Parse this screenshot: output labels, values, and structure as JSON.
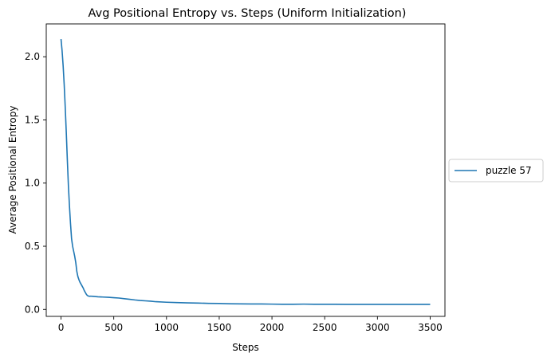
{
  "chart_data": {
    "type": "line",
    "title": "Avg Positional Entropy vs. Steps (Uniform Initialization)",
    "xlabel": "Steps",
    "ylabel": "Average Positional Entropy",
    "xlim": [
      -140,
      3640
    ],
    "ylim": [
      -0.055,
      2.26
    ],
    "x_ticks": [
      0,
      500,
      1000,
      1500,
      2000,
      2500,
      3000,
      3500
    ],
    "x_tick_labels": [
      "0",
      "500",
      "1000",
      "1500",
      "2000",
      "2500",
      "3000",
      "3500"
    ],
    "y_ticks": [
      0.0,
      0.5,
      1.0,
      1.5,
      2.0
    ],
    "y_tick_labels": [
      "0.0",
      "0.5",
      "1.0",
      "1.5",
      "2.0"
    ],
    "grid": false,
    "legend_position": "center-right-outside",
    "series": [
      {
        "name": "puzzle 57",
        "color": "#1f77b4",
        "x": [
          0,
          10,
          20,
          30,
          40,
          50,
          60,
          70,
          80,
          90,
          100,
          110,
          120,
          130,
          140,
          150,
          160,
          170,
          180,
          190,
          200,
          210,
          220,
          230,
          240,
          250,
          260,
          270,
          280,
          300,
          350,
          400,
          450,
          500,
          550,
          600,
          650,
          700,
          750,
          800,
          850,
          900,
          1000,
          1100,
          1200,
          1300,
          1400,
          1500,
          1600,
          1700,
          1800,
          1900,
          2000,
          2100,
          2200,
          2300,
          2400,
          2500,
          2600,
          2700,
          2800,
          2900,
          3000,
          3100,
          3200,
          3300,
          3400,
          3500
        ],
        "y": [
          2.14,
          2.05,
          1.93,
          1.78,
          1.6,
          1.4,
          1.18,
          0.98,
          0.82,
          0.68,
          0.56,
          0.5,
          0.46,
          0.42,
          0.37,
          0.3,
          0.26,
          0.235,
          0.215,
          0.2,
          0.185,
          0.17,
          0.15,
          0.135,
          0.12,
          0.11,
          0.106,
          0.104,
          0.105,
          0.104,
          0.1,
          0.098,
          0.096,
          0.093,
          0.09,
          0.085,
          0.08,
          0.075,
          0.071,
          0.068,
          0.065,
          0.061,
          0.057,
          0.054,
          0.052,
          0.05,
          0.048,
          0.047,
          0.045,
          0.044,
          0.043,
          0.043,
          0.042,
          0.041,
          0.041,
          0.042,
          0.041,
          0.041,
          0.041,
          0.04,
          0.04,
          0.04,
          0.04,
          0.04,
          0.04,
          0.04,
          0.04,
          0.04
        ]
      }
    ]
  }
}
